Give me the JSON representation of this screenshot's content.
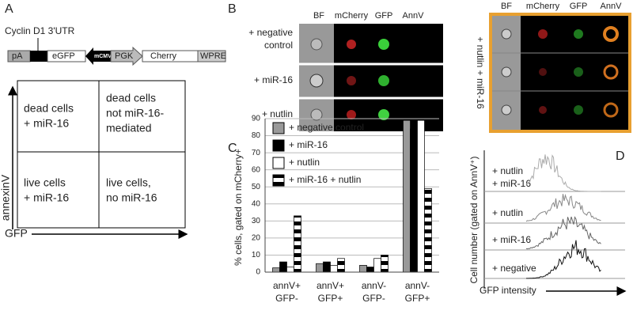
{
  "panel_a": {
    "label": "A",
    "construct": {
      "utr": "Cyclin D1 3'UTR",
      "pa": "pA",
      "egfp": "eGFP",
      "mcmv": "mCMV",
      "pgk": "PGK",
      "cherry": "Cherry",
      "wpre": "WPRE"
    },
    "quadrants": {
      "top_left": [
        "dead cells",
        "+ miR-16"
      ],
      "top_right": [
        "dead cells",
        "not miR-16-",
        "mediated"
      ],
      "bottom_left": [
        "live cells",
        "+ miR-16"
      ],
      "bottom_right": [
        "live cells,",
        "no miR-16"
      ]
    },
    "y_axis": "annexinV",
    "x_axis": "GFP"
  },
  "panel_b": {
    "label": "B",
    "columns": [
      "BF",
      "mCherry",
      "GFP",
      "AnnV"
    ],
    "rows": [
      [
        "+ negative",
        "control"
      ],
      [
        "+ miR-16"
      ],
      [
        "+ nutlin"
      ]
    ],
    "right_columns": [
      "BF",
      "mCherry",
      "GFP",
      "AnnV"
    ],
    "right_label": "+ nutlin + miR-16"
  },
  "chart_data": {
    "type": "bar",
    "label": "C",
    "y_label": "% cells, gated on mCherry+",
    "categories": [
      [
        "annV+",
        "GFP-"
      ],
      [
        "annV+",
        "GFP+"
      ],
      [
        "annV-",
        "GFP-"
      ],
      [
        "annV-",
        "GFP+"
      ]
    ],
    "series": [
      {
        "name": "+ negative control",
        "color": "#999999",
        "values": [
          2.5,
          5,
          4,
          89
        ]
      },
      {
        "name": "+ miR-16",
        "color": "#000000",
        "values": [
          6,
          6,
          3,
          84
        ]
      },
      {
        "name": "+ nutlin",
        "color": "#ffffff",
        "values": [
          3,
          4,
          8,
          89
        ]
      },
      {
        "name": "+ miR-16 + nutlin",
        "color": "#000000",
        "pattern": "horizontal-stripes",
        "values": [
          33,
          8,
          10,
          49
        ]
      }
    ],
    "ylim": [
      0,
      90
    ],
    "yticks": [
      0,
      10,
      20,
      30,
      40,
      50,
      60,
      70,
      80,
      90
    ],
    "grid": true
  },
  "panel_d": {
    "label": "D",
    "traces": [
      [
        "+ nutlin",
        "+ miR-16"
      ],
      [
        "+ nutlin"
      ],
      [
        "+ miR-16"
      ],
      [
        "+ negative"
      ]
    ],
    "y_label": "Cell number (gated on AnnV⁺)",
    "x_label": "GFP intensity"
  }
}
